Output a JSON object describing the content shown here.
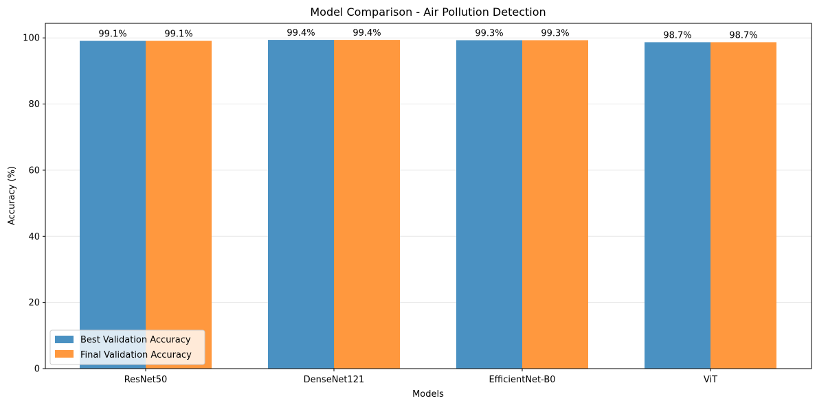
{
  "chart_data": {
    "type": "bar",
    "title": "Model Comparison - Air Pollution Detection",
    "xlabel": "Models",
    "ylabel": "Accuracy (%)",
    "categories": [
      "ResNet50",
      "DenseNet121",
      "EfficientNet-B0",
      "ViT"
    ],
    "series": [
      {
        "name": "Best Validation Accuracy",
        "values": [
          99.1,
          99.4,
          99.3,
          98.7
        ],
        "labels": [
          "99.1%",
          "99.4%",
          "99.3%",
          "98.7%"
        ],
        "color": "#4a91c2"
      },
      {
        "name": "Final Validation Accuracy",
        "values": [
          99.1,
          99.4,
          99.3,
          98.7
        ],
        "labels": [
          "99.1%",
          "99.4%",
          "99.3%",
          "98.7%"
        ],
        "color": "#ff983e"
      }
    ],
    "ylim": [
      0,
      104.4
    ],
    "yticks": [
      "0",
      "20",
      "40",
      "60",
      "80",
      "100"
    ],
    "grid": "y",
    "legend_position": "lower-left"
  }
}
